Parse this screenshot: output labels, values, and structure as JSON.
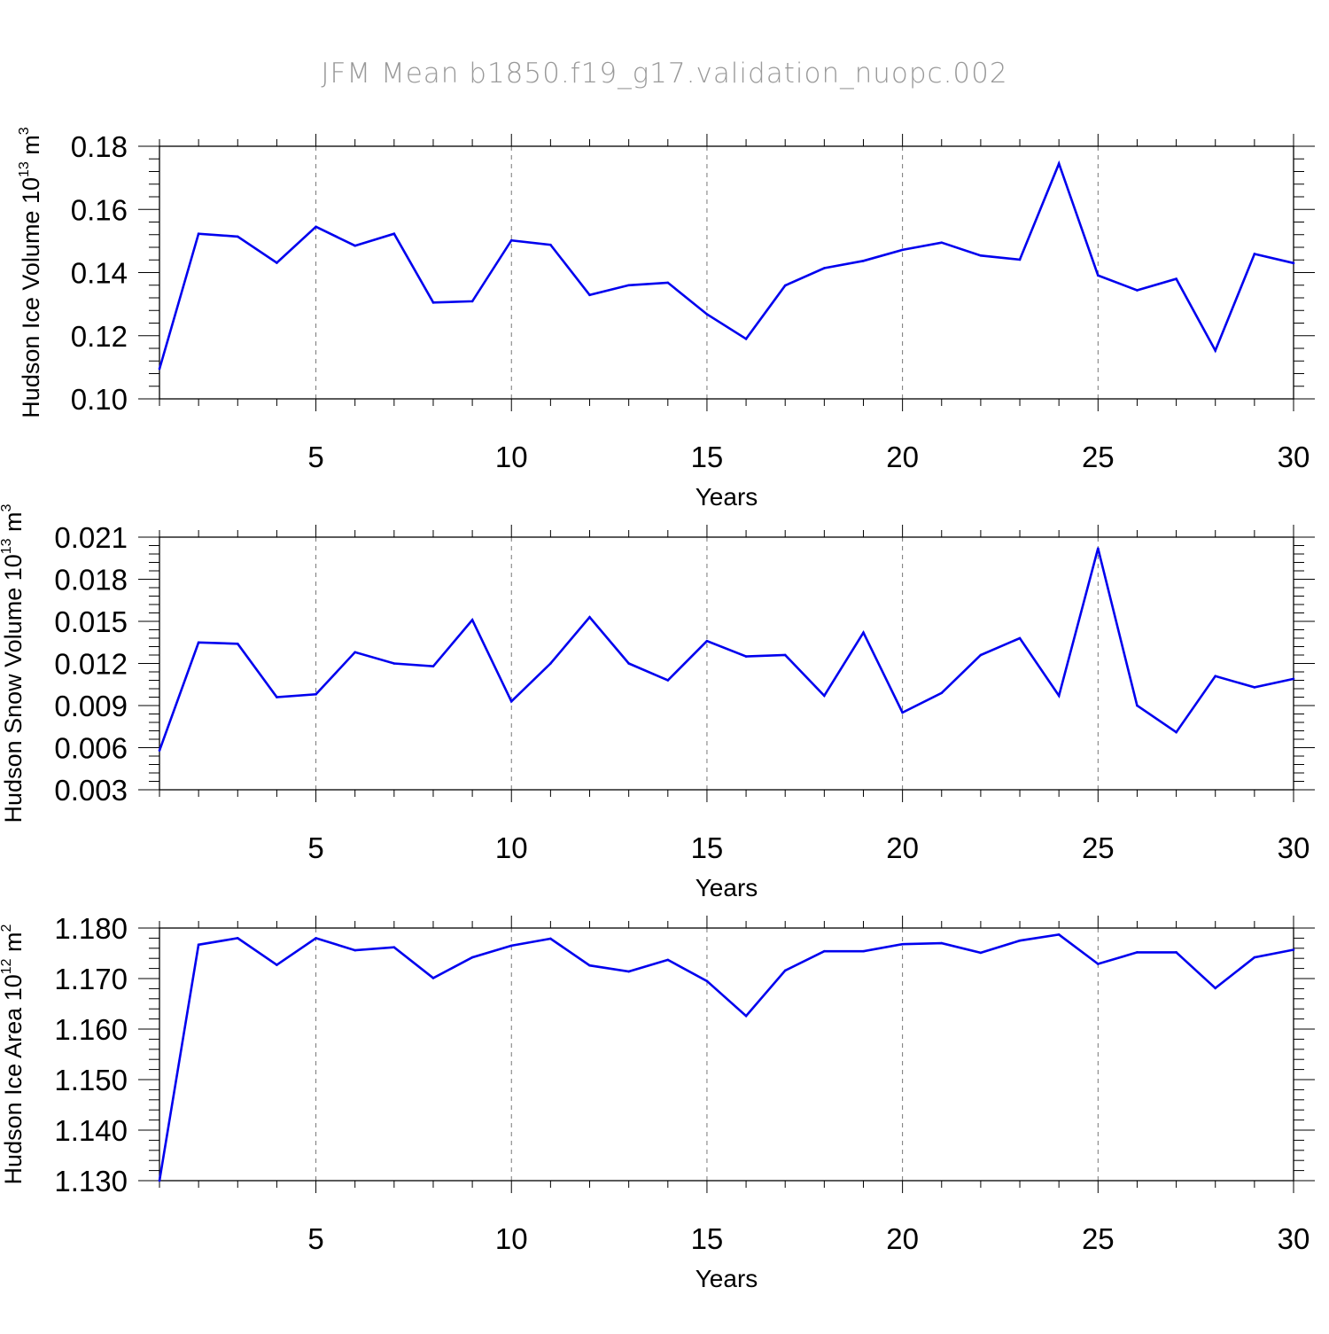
{
  "page_title": "JFM Mean b1850.f19_g17.validation_nuopc.002",
  "colors": {
    "series": "#0000ee",
    "axis": "#000000",
    "grid": "#777777",
    "title": "#999999"
  },
  "chart_data": [
    {
      "type": "line",
      "ylabel": "Hudson Ice Volume",
      "ylabel_unit": {
        "base": "10",
        "exp": "13",
        "unit": "m",
        "unit_exp": "3"
      },
      "xlabel": "Years",
      "xlim": [
        1,
        30
      ],
      "ylim": [
        0.1,
        0.18
      ],
      "yticks": [
        "0.10",
        "0.12",
        "0.14",
        "0.16",
        "0.18"
      ],
      "xticks": [
        "5",
        "10",
        "15",
        "20",
        "25",
        "30"
      ],
      "x": [
        1,
        2,
        3,
        4,
        5,
        6,
        7,
        8,
        9,
        10,
        11,
        12,
        13,
        14,
        15,
        16,
        17,
        18,
        19,
        20,
        21,
        22,
        23,
        24,
        25,
        26,
        27,
        28,
        29,
        30
      ],
      "values": [
        0.1095,
        0.1523,
        0.1514,
        0.1431,
        0.1545,
        0.1485,
        0.1523,
        0.1305,
        0.1309,
        0.1502,
        0.1488,
        0.1329,
        0.136,
        0.1368,
        0.1268,
        0.119,
        0.1359,
        0.1414,
        0.1437,
        0.1472,
        0.1495,
        0.1454,
        0.1441,
        0.1745,
        0.1391,
        0.1344,
        0.138,
        0.1153,
        0.1459,
        0.143
      ]
    },
    {
      "type": "line",
      "ylabel": "Hudson Snow Volume",
      "ylabel_unit": {
        "base": "10",
        "exp": "13",
        "unit": "m",
        "unit_exp": "3"
      },
      "xlabel": "Years",
      "xlim": [
        1,
        30
      ],
      "ylim": [
        0.003,
        0.021
      ],
      "yticks": [
        "0.003",
        "0.006",
        "0.009",
        "0.012",
        "0.015",
        "0.018",
        "0.021"
      ],
      "xticks": [
        "5",
        "10",
        "15",
        "20",
        "25",
        "30"
      ],
      "x": [
        1,
        2,
        3,
        4,
        5,
        6,
        7,
        8,
        9,
        10,
        11,
        12,
        13,
        14,
        15,
        16,
        17,
        18,
        19,
        20,
        21,
        22,
        23,
        24,
        25,
        26,
        27,
        28,
        29,
        30
      ],
      "values": [
        0.0058,
        0.0135,
        0.0134,
        0.0096,
        0.0098,
        0.0128,
        0.012,
        0.0118,
        0.0151,
        0.0093,
        0.012,
        0.0153,
        0.012,
        0.0108,
        0.0136,
        0.0125,
        0.0126,
        0.0097,
        0.0142,
        0.0085,
        0.0099,
        0.0126,
        0.0138,
        0.0097,
        0.0202,
        0.009,
        0.0071,
        0.0111,
        0.0103,
        0.0109
      ]
    },
    {
      "type": "line",
      "ylabel": "Hudson Ice Area",
      "ylabel_unit": {
        "base": "10",
        "exp": "12",
        "unit": "m",
        "unit_exp": "2"
      },
      "xlabel": "Years",
      "xlim": [
        1,
        30
      ],
      "ylim": [
        1.13,
        1.18
      ],
      "yticks": [
        "1.130",
        "1.140",
        "1.150",
        "1.160",
        "1.170",
        "1.180"
      ],
      "xticks": [
        "5",
        "10",
        "15",
        "20",
        "25",
        "30"
      ],
      "x": [
        1,
        2,
        3,
        4,
        5,
        6,
        7,
        8,
        9,
        10,
        11,
        12,
        13,
        14,
        15,
        16,
        17,
        18,
        19,
        20,
        21,
        22,
        23,
        24,
        25,
        26,
        27,
        28,
        29,
        30
      ],
      "values": [
        1.13,
        1.1767,
        1.178,
        1.1727,
        1.178,
        1.1756,
        1.1762,
        1.1701,
        1.1742,
        1.1765,
        1.1779,
        1.1726,
        1.1714,
        1.1737,
        1.1695,
        1.1626,
        1.1716,
        1.1754,
        1.1754,
        1.1768,
        1.177,
        1.1751,
        1.1775,
        1.1787,
        1.1729,
        1.1752,
        1.1752,
        1.1681,
        1.1742,
        1.1757
      ]
    }
  ]
}
